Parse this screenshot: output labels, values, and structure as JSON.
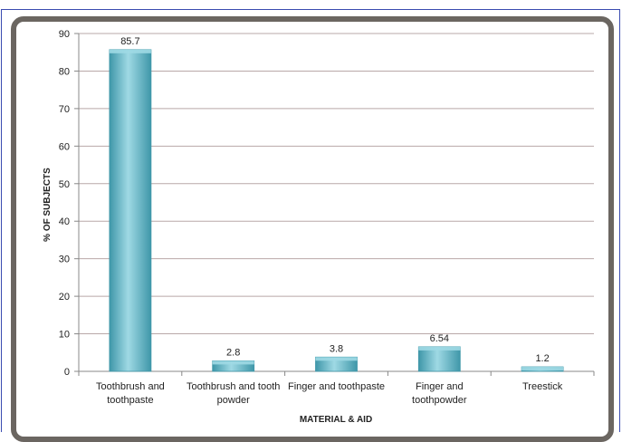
{
  "chart_data": {
    "type": "bar",
    "categories": [
      [
        "Toothbrush and",
        "toothpaste"
      ],
      [
        "Toothbrush and tooth",
        "powder"
      ],
      [
        "Finger and toothpaste"
      ],
      [
        "Finger and",
        "toothpowder"
      ],
      [
        "Treestick"
      ]
    ],
    "values": [
      85.7,
      2.8,
      3.8,
      6.54,
      1.2
    ],
    "data_labels": [
      "85.7",
      "2.8",
      "3.8",
      "6.54",
      "1.2"
    ],
    "xlabel": "MATERIAL  & AID",
    "ylabel": "% OF SUBJECTS",
    "ylim": [
      0,
      90
    ],
    "yticks": [
      0,
      10,
      20,
      30,
      40,
      50,
      60,
      70,
      80,
      90
    ],
    "grid": true,
    "bar_color": "#5fb8c8",
    "bar_dark": "#3f97a9",
    "bar_light": "#9fd9e4",
    "frame_color": "#6b6661",
    "grid_color": "#b9a8a8"
  }
}
